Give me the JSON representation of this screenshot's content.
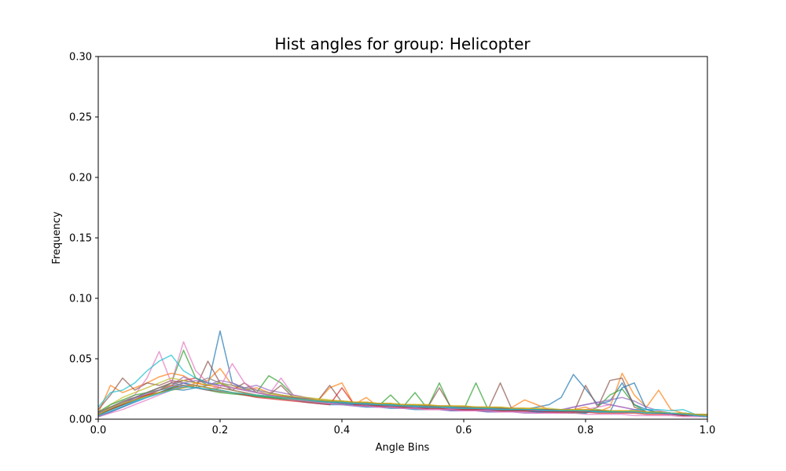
{
  "chart_data": {
    "type": "line",
    "title": "Hist angles for group: Helicopter",
    "xlabel": "Angle Bins",
    "ylabel": "Frequency",
    "xlim": [
      0.0,
      1.0
    ],
    "ylim": [
      0.0,
      0.3
    ],
    "xticks": [
      "0.0",
      "0.2",
      "0.4",
      "0.6",
      "0.8",
      "1.0"
    ],
    "yticks": [
      "0.00",
      "0.05",
      "0.10",
      "0.15",
      "0.20",
      "0.25",
      "0.30"
    ],
    "grid": false,
    "legend": "none",
    "series_opacity": 0.7,
    "x": [
      0.0,
      0.02,
      0.04,
      0.06,
      0.08,
      0.1,
      0.12,
      0.14,
      0.16,
      0.18,
      0.2,
      0.22,
      0.24,
      0.26,
      0.28,
      0.3,
      0.32,
      0.34,
      0.36,
      0.38,
      0.4,
      0.42,
      0.44,
      0.46,
      0.48,
      0.5,
      0.52,
      0.54,
      0.56,
      0.58,
      0.6,
      0.62,
      0.64,
      0.66,
      0.68,
      0.7,
      0.72,
      0.74,
      0.76,
      0.78,
      0.8,
      0.82,
      0.84,
      0.86,
      0.88,
      0.9,
      0.92,
      0.94,
      0.96,
      0.98,
      1.0
    ],
    "series": [
      {
        "color": "#1f77b4",
        "values": [
          0.004,
          0.01,
          0.012,
          0.018,
          0.02,
          0.022,
          0.025,
          0.024,
          0.026,
          0.028,
          0.073,
          0.03,
          0.025,
          0.022,
          0.02,
          0.018,
          0.016,
          0.014,
          0.013,
          0.012,
          0.012,
          0.011,
          0.01,
          0.01,
          0.009,
          0.009,
          0.008,
          0.008,
          0.008,
          0.007,
          0.007,
          0.007,
          0.006,
          0.006,
          0.006,
          0.008,
          0.01,
          0.012,
          0.018,
          0.037,
          0.025,
          0.012,
          0.015,
          0.03,
          0.012,
          0.008,
          0.006,
          0.005,
          0.004,
          0.003,
          0.002
        ]
      },
      {
        "color": "#ff7f0e",
        "values": [
          0.005,
          0.028,
          0.022,
          0.026,
          0.03,
          0.035,
          0.038,
          0.036,
          0.03,
          0.032,
          0.042,
          0.028,
          0.024,
          0.026,
          0.022,
          0.02,
          0.018,
          0.016,
          0.015,
          0.026,
          0.03,
          0.012,
          0.018,
          0.01,
          0.01,
          0.009,
          0.009,
          0.008,
          0.008,
          0.008,
          0.007,
          0.007,
          0.007,
          0.006,
          0.01,
          0.016,
          0.012,
          0.008,
          0.006,
          0.008,
          0.01,
          0.006,
          0.01,
          0.038,
          0.02,
          0.01,
          0.024,
          0.008,
          0.005,
          0.003,
          0.002
        ]
      },
      {
        "color": "#2ca02c",
        "values": [
          0.003,
          0.008,
          0.012,
          0.016,
          0.02,
          0.024,
          0.03,
          0.057,
          0.034,
          0.028,
          0.03,
          0.026,
          0.024,
          0.022,
          0.036,
          0.03,
          0.02,
          0.018,
          0.016,
          0.015,
          0.014,
          0.013,
          0.012,
          0.011,
          0.02,
          0.01,
          0.022,
          0.009,
          0.03,
          0.008,
          0.008,
          0.03,
          0.008,
          0.007,
          0.007,
          0.006,
          0.006,
          0.006,
          0.005,
          0.005,
          0.005,
          0.01,
          0.02,
          0.025,
          0.012,
          0.006,
          0.005,
          0.004,
          0.003,
          0.003,
          0.002
        ]
      },
      {
        "color": "#d62728",
        "values": [
          0.006,
          0.01,
          0.014,
          0.018,
          0.022,
          0.026,
          0.03,
          0.032,
          0.034,
          0.03,
          0.028,
          0.026,
          0.024,
          0.022,
          0.02,
          0.019,
          0.018,
          0.017,
          0.016,
          0.015,
          0.015,
          0.014,
          0.014,
          0.013,
          0.013,
          0.012,
          0.012,
          0.011,
          0.011,
          0.011,
          0.01,
          0.01,
          0.01,
          0.009,
          0.009,
          0.009,
          0.008,
          0.008,
          0.008,
          0.008,
          0.007,
          0.007,
          0.007,
          0.007,
          0.006,
          0.006,
          0.006,
          0.005,
          0.005,
          0.004,
          0.004
        ]
      },
      {
        "color": "#9467bd",
        "values": [
          0.002,
          0.006,
          0.01,
          0.015,
          0.02,
          0.024,
          0.028,
          0.035,
          0.03,
          0.028,
          0.032,
          0.03,
          0.026,
          0.028,
          0.024,
          0.022,
          0.02,
          0.018,
          0.016,
          0.014,
          0.013,
          0.012,
          0.011,
          0.01,
          0.01,
          0.009,
          0.009,
          0.008,
          0.008,
          0.007,
          0.007,
          0.007,
          0.006,
          0.006,
          0.006,
          0.005,
          0.005,
          0.006,
          0.008,
          0.01,
          0.012,
          0.014,
          0.016,
          0.018,
          0.015,
          0.01,
          0.007,
          0.005,
          0.004,
          0.003,
          0.002
        ]
      },
      {
        "color": "#8c564b",
        "values": [
          0.008,
          0.02,
          0.034,
          0.024,
          0.03,
          0.028,
          0.032,
          0.03,
          0.026,
          0.048,
          0.03,
          0.024,
          0.03,
          0.022,
          0.02,
          0.028,
          0.018,
          0.016,
          0.015,
          0.028,
          0.014,
          0.013,
          0.012,
          0.011,
          0.011,
          0.01,
          0.01,
          0.009,
          0.026,
          0.009,
          0.008,
          0.008,
          0.008,
          0.03,
          0.007,
          0.007,
          0.006,
          0.006,
          0.006,
          0.005,
          0.028,
          0.01,
          0.032,
          0.034,
          0.01,
          0.006,
          0.005,
          0.004,
          0.004,
          0.003,
          0.002
        ]
      },
      {
        "color": "#e377c2",
        "values": [
          0.004,
          0.008,
          0.014,
          0.02,
          0.034,
          0.056,
          0.03,
          0.064,
          0.04,
          0.03,
          0.026,
          0.046,
          0.03,
          0.024,
          0.02,
          0.034,
          0.02,
          0.018,
          0.016,
          0.014,
          0.013,
          0.012,
          0.011,
          0.01,
          0.01,
          0.009,
          0.009,
          0.008,
          0.008,
          0.008,
          0.007,
          0.007,
          0.007,
          0.006,
          0.006,
          0.006,
          0.005,
          0.005,
          0.005,
          0.006,
          0.008,
          0.01,
          0.012,
          0.01,
          0.008,
          0.006,
          0.005,
          0.004,
          0.003,
          0.003,
          0.002
        ]
      },
      {
        "color": "#7f7f7f",
        "values": [
          0.005,
          0.01,
          0.015,
          0.018,
          0.022,
          0.026,
          0.028,
          0.032,
          0.03,
          0.034,
          0.03,
          0.028,
          0.026,
          0.024,
          0.022,
          0.02,
          0.018,
          0.017,
          0.016,
          0.015,
          0.014,
          0.013,
          0.013,
          0.012,
          0.012,
          0.011,
          0.011,
          0.01,
          0.01,
          0.01,
          0.009,
          0.009,
          0.009,
          0.008,
          0.008,
          0.008,
          0.008,
          0.007,
          0.007,
          0.007,
          0.007,
          0.006,
          0.006,
          0.006,
          0.006,
          0.005,
          0.005,
          0.005,
          0.004,
          0.004,
          0.003
        ]
      },
      {
        "color": "#bcbd22",
        "values": [
          0.003,
          0.012,
          0.018,
          0.022,
          0.026,
          0.03,
          0.034,
          0.032,
          0.03,
          0.028,
          0.03,
          0.026,
          0.024,
          0.022,
          0.021,
          0.02,
          0.019,
          0.018,
          0.017,
          0.016,
          0.015,
          0.014,
          0.014,
          0.013,
          0.013,
          0.012,
          0.012,
          0.011,
          0.011,
          0.011,
          0.01,
          0.01,
          0.01,
          0.009,
          0.009,
          0.009,
          0.008,
          0.008,
          0.008,
          0.008,
          0.007,
          0.007,
          0.007,
          0.007,
          0.006,
          0.006,
          0.006,
          0.005,
          0.005,
          0.004,
          0.004
        ]
      },
      {
        "color": "#17becf",
        "values": [
          0.01,
          0.022,
          0.024,
          0.03,
          0.04,
          0.048,
          0.053,
          0.04,
          0.034,
          0.03,
          0.028,
          0.026,
          0.024,
          0.022,
          0.02,
          0.018,
          0.017,
          0.016,
          0.015,
          0.014,
          0.013,
          0.013,
          0.012,
          0.012,
          0.011,
          0.011,
          0.01,
          0.01,
          0.01,
          0.009,
          0.009,
          0.009,
          0.008,
          0.008,
          0.008,
          0.008,
          0.007,
          0.007,
          0.007,
          0.007,
          0.006,
          0.006,
          0.006,
          0.006,
          0.008,
          0.008,
          0.008,
          0.007,
          0.008,
          0.004,
          0.003
        ]
      },
      {
        "color": "#1f77b4",
        "values": [
          0.002,
          0.006,
          0.01,
          0.014,
          0.018,
          0.022,
          0.026,
          0.03,
          0.028,
          0.026,
          0.024,
          0.022,
          0.02,
          0.019,
          0.018,
          0.017,
          0.016,
          0.015,
          0.014,
          0.013,
          0.012,
          0.012,
          0.011,
          0.011,
          0.01,
          0.01,
          0.009,
          0.009,
          0.009,
          0.008,
          0.008,
          0.008,
          0.007,
          0.007,
          0.007,
          0.007,
          0.006,
          0.006,
          0.006,
          0.006,
          0.005,
          0.008,
          0.006,
          0.026,
          0.03,
          0.008,
          0.005,
          0.004,
          0.003,
          0.003,
          0.002
        ]
      },
      {
        "color": "#ff7f0e",
        "values": [
          0.004,
          0.008,
          0.012,
          0.016,
          0.02,
          0.024,
          0.028,
          0.026,
          0.03,
          0.028,
          0.026,
          0.024,
          0.022,
          0.02,
          0.019,
          0.018,
          0.017,
          0.016,
          0.016,
          0.015,
          0.015,
          0.014,
          0.014,
          0.013,
          0.013,
          0.012,
          0.012,
          0.012,
          0.011,
          0.011,
          0.011,
          0.01,
          0.01,
          0.01,
          0.009,
          0.009,
          0.009,
          0.008,
          0.008,
          0.008,
          0.008,
          0.007,
          0.007,
          0.007,
          0.007,
          0.006,
          0.006,
          0.005,
          0.005,
          0.004,
          0.003
        ]
      },
      {
        "color": "#2ca02c",
        "values": [
          0.006,
          0.012,
          0.016,
          0.02,
          0.022,
          0.024,
          0.026,
          0.028,
          0.026,
          0.024,
          0.022,
          0.021,
          0.02,
          0.019,
          0.018,
          0.017,
          0.016,
          0.015,
          0.014,
          0.014,
          0.013,
          0.013,
          0.012,
          0.012,
          0.011,
          0.011,
          0.011,
          0.01,
          0.01,
          0.01,
          0.009,
          0.009,
          0.009,
          0.009,
          0.008,
          0.008,
          0.008,
          0.008,
          0.007,
          0.007,
          0.007,
          0.007,
          0.006,
          0.006,
          0.006,
          0.006,
          0.005,
          0.005,
          0.004,
          0.004,
          0.003
        ]
      },
      {
        "color": "#d62728",
        "values": [
          0.003,
          0.008,
          0.012,
          0.016,
          0.02,
          0.022,
          0.024,
          0.026,
          0.028,
          0.026,
          0.024,
          0.022,
          0.02,
          0.018,
          0.017,
          0.016,
          0.015,
          0.014,
          0.013,
          0.012,
          0.026,
          0.012,
          0.011,
          0.011,
          0.01,
          0.01,
          0.009,
          0.009,
          0.009,
          0.008,
          0.008,
          0.008,
          0.008,
          0.007,
          0.007,
          0.007,
          0.007,
          0.006,
          0.006,
          0.006,
          0.006,
          0.005,
          0.005,
          0.005,
          0.005,
          0.004,
          0.004,
          0.004,
          0.003,
          0.003,
          0.002
        ]
      },
      {
        "color": "#9467bd",
        "values": [
          0.005,
          0.009,
          0.013,
          0.017,
          0.021,
          0.024,
          0.027,
          0.03,
          0.032,
          0.03,
          0.028,
          0.026,
          0.024,
          0.022,
          0.02,
          0.018,
          0.017,
          0.016,
          0.015,
          0.014,
          0.013,
          0.013,
          0.012,
          0.012,
          0.011,
          0.011,
          0.01,
          0.01,
          0.01,
          0.009,
          0.009,
          0.009,
          0.008,
          0.008,
          0.008,
          0.008,
          0.007,
          0.007,
          0.007,
          0.01,
          0.012,
          0.014,
          0.012,
          0.01,
          0.008,
          0.006,
          0.005,
          0.004,
          0.004,
          0.003,
          0.002
        ]
      },
      {
        "color": "#8c564b",
        "values": [
          0.004,
          0.008,
          0.012,
          0.016,
          0.019,
          0.022,
          0.025,
          0.028,
          0.026,
          0.024,
          0.023,
          0.022,
          0.021,
          0.02,
          0.019,
          0.018,
          0.017,
          0.016,
          0.015,
          0.015,
          0.014,
          0.014,
          0.013,
          0.013,
          0.012,
          0.012,
          0.011,
          0.011,
          0.011,
          0.01,
          0.01,
          0.01,
          0.009,
          0.009,
          0.009,
          0.008,
          0.008,
          0.008,
          0.008,
          0.007,
          0.007,
          0.007,
          0.007,
          0.006,
          0.006,
          0.006,
          0.005,
          0.005,
          0.004,
          0.004,
          0.003
        ]
      },
      {
        "color": "#e377c2",
        "values": [
          0.002,
          0.005,
          0.008,
          0.012,
          0.016,
          0.02,
          0.024,
          0.028,
          0.026,
          0.024,
          0.028,
          0.026,
          0.024,
          0.022,
          0.02,
          0.018,
          0.016,
          0.015,
          0.014,
          0.013,
          0.012,
          0.011,
          0.011,
          0.01,
          0.01,
          0.009,
          0.009,
          0.008,
          0.008,
          0.008,
          0.007,
          0.007,
          0.007,
          0.006,
          0.006,
          0.006,
          0.005,
          0.005,
          0.005,
          0.005,
          0.004,
          0.004,
          0.004,
          0.004,
          0.003,
          0.003,
          0.003,
          0.003,
          0.002,
          0.002,
          0.002
        ]
      },
      {
        "color": "#7f7f7f",
        "values": [
          0.006,
          0.01,
          0.014,
          0.018,
          0.022,
          0.026,
          0.03,
          0.028,
          0.026,
          0.024,
          0.026,
          0.024,
          0.022,
          0.02,
          0.019,
          0.018,
          0.017,
          0.016,
          0.015,
          0.014,
          0.014,
          0.013,
          0.013,
          0.012,
          0.012,
          0.011,
          0.011,
          0.011,
          0.01,
          0.01,
          0.01,
          0.009,
          0.009,
          0.009,
          0.009,
          0.008,
          0.008,
          0.008,
          0.008,
          0.007,
          0.007,
          0.007,
          0.007,
          0.006,
          0.006,
          0.006,
          0.006,
          0.005,
          0.005,
          0.004,
          0.003
        ]
      },
      {
        "color": "#bcbd22",
        "values": [
          0.004,
          0.009,
          0.013,
          0.016,
          0.019,
          0.022,
          0.024,
          0.026,
          0.028,
          0.026,
          0.024,
          0.022,
          0.021,
          0.02,
          0.019,
          0.018,
          0.017,
          0.016,
          0.016,
          0.015,
          0.015,
          0.014,
          0.014,
          0.013,
          0.013,
          0.012,
          0.012,
          0.012,
          0.011,
          0.011,
          0.011,
          0.01,
          0.01,
          0.01,
          0.009,
          0.009,
          0.009,
          0.009,
          0.008,
          0.008,
          0.008,
          0.008,
          0.007,
          0.007,
          0.007,
          0.006,
          0.006,
          0.005,
          0.005,
          0.004,
          0.003
        ]
      },
      {
        "color": "#17becf",
        "values": [
          0.003,
          0.007,
          0.011,
          0.015,
          0.018,
          0.021,
          0.024,
          0.027,
          0.026,
          0.025,
          0.024,
          0.022,
          0.021,
          0.02,
          0.019,
          0.018,
          0.017,
          0.016,
          0.015,
          0.014,
          0.014,
          0.013,
          0.013,
          0.012,
          0.012,
          0.011,
          0.011,
          0.01,
          0.01,
          0.01,
          0.009,
          0.009,
          0.009,
          0.008,
          0.008,
          0.008,
          0.008,
          0.007,
          0.007,
          0.007,
          0.007,
          0.006,
          0.006,
          0.006,
          0.006,
          0.005,
          0.005,
          0.005,
          0.004,
          0.003,
          0.002
        ]
      }
    ]
  }
}
